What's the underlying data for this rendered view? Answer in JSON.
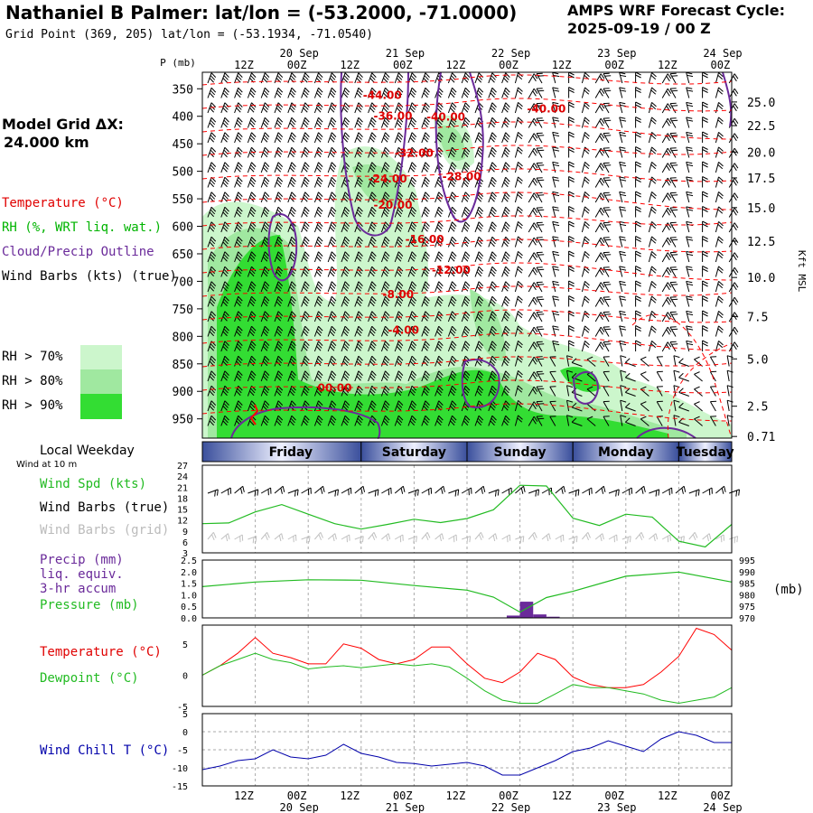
{
  "header": {
    "title": "Nathaniel B Palmer:  lat/lon = (-53.2000, -71.0000)",
    "subtitle": "Grid Point (369, 205) lat/lon = (-53.1934, -71.0540)",
    "cycle_line1": "AMPS WRF Forecast Cycle:",
    "cycle_line2": "2025-09-19 / 00  Z",
    "grid_dx_label": "Model Grid ΔX:",
    "grid_dx_value": " 24.000 km"
  },
  "legend": {
    "temperature": "Temperature (°C)",
    "rh": "RH (%, WRT liq. wat.)",
    "cloud": "Cloud/Precip Outline",
    "wind_barbs": "Wind Barbs (kts) (true)",
    "rh70": "RH > 70%",
    "rh80": "RH > 80%",
    "rh90": "RH > 90%"
  },
  "colors": {
    "temperature": "#ff0000",
    "rh": "#00b400",
    "cloud": "#6a2a9a",
    "rh70": "#ccf6cc",
    "rh80": "#a0e8a0",
    "rh90": "#33dd33",
    "pressure": "#22bb22",
    "precip": "#6a2a9a",
    "windchill": "#0000aa",
    "grid": "#999999"
  },
  "time_axis": {
    "p_label": "P (mb)",
    "top_ticks": [
      "12Z",
      "00Z",
      "12Z",
      "00Z",
      "12Z",
      "00Z",
      "12Z",
      "00Z",
      "12Z",
      "00Z"
    ],
    "dates": [
      "20 Sep",
      "21 Sep",
      "22 Sep",
      "23 Sep",
      "24 Sep"
    ],
    "weekday_label": "Local Weekday",
    "weekdays": [
      "Friday",
      "Saturday",
      "Sunday",
      "Monday",
      "Tuesday"
    ]
  },
  "chart_data": [
    {
      "type": "heatmap",
      "name": "cross-section",
      "pressure_ticks": [
        350,
        400,
        450,
        500,
        550,
        600,
        650,
        700,
        750,
        800,
        850,
        900,
        950
      ],
      "ylim_mb": [
        320,
        985
      ],
      "kft_ticks": [
        "25.0",
        "22.5",
        "20.0",
        "17.5",
        "15.0",
        "12.5",
        "10.0",
        "7.5",
        "5.0",
        "2.5",
        "0.71"
      ],
      "kft_mb": [
        374,
        417,
        465,
        512,
        566,
        627,
        693,
        764,
        841,
        927,
        982
      ],
      "kft_label": "Kft MSL",
      "temperature_labels": [
        {
          "text": "-44.00",
          "t": 0.34,
          "p": 360
        },
        {
          "text": "-36.00",
          "t": 0.36,
          "p": 398
        },
        {
          "text": "-40.00",
          "t": 0.46,
          "p": 400
        },
        {
          "text": "-40.00",
          "t": 0.65,
          "p": 385
        },
        {
          "text": "-32.00",
          "t": 0.4,
          "p": 465
        },
        {
          "text": "-28.00",
          "t": 0.49,
          "p": 508
        },
        {
          "text": "-24.00",
          "t": 0.35,
          "p": 512
        },
        {
          "text": "-20.00",
          "t": 0.36,
          "p": 560
        },
        {
          "text": "-16.00",
          "t": 0.42,
          "p": 622
        },
        {
          "text": "-12.00",
          "t": 0.47,
          "p": 678
        },
        {
          "text": "-8.00",
          "t": 0.37,
          "p": 722
        },
        {
          "text": "-4.00",
          "t": 0.38,
          "p": 787
        },
        {
          "text": "00.00",
          "t": 0.25,
          "p": 892
        }
      ]
    },
    {
      "type": "line",
      "name": "wind-speed",
      "ylabel": "Wind Spd (kts)",
      "ylabel2": "Wind Barbs (true)",
      "ylabel3": "Wind Barbs (grid)",
      "note": "Wind at 10 m",
      "yticks": [
        3,
        6,
        9,
        12,
        15,
        18,
        21,
        24,
        27
      ],
      "ylim": [
        3,
        27
      ],
      "x_hours": [
        0,
        6,
        12,
        18,
        24,
        30,
        36,
        42,
        48,
        54,
        60,
        66,
        72,
        78,
        84,
        90,
        96,
        102,
        108,
        114,
        120
      ],
      "values": [
        11,
        11.2,
        14.2,
        16.2,
        13.6,
        11,
        9.5,
        10.8,
        12.2,
        11.3,
        12.4,
        14.8,
        21.5,
        21.3,
        12.5,
        10.5,
        13.6,
        12.8,
        6.2,
        4.6,
        10.8
      ]
    },
    {
      "type": "bar",
      "name": "precip-pressure",
      "ylabel": "Precip (mm)",
      "ylabel2": "liq. equiv.",
      "ylabel3": "3-hr accum",
      "ylabel_pressure": "Pressure (mb)",
      "precip_ticks": [
        "0.0",
        "0.5",
        "1.0",
        "1.5",
        "2.0",
        "2.5"
      ],
      "precip_ylim": [
        0,
        2.5
      ],
      "pressure_ticks": [
        970,
        975,
        980,
        985,
        990,
        995
      ],
      "pressure_ylim": [
        970,
        995
      ],
      "pressure_unit": "(mb)",
      "precip_x_hours": [
        66,
        69,
        72,
        75,
        78
      ],
      "precip_values": [
        0.02,
        0.1,
        0.7,
        0.15,
        0.05
      ],
      "pressure_x_hours": [
        0,
        12,
        24,
        36,
        48,
        60,
        66,
        72,
        78,
        84,
        96,
        108,
        120
      ],
      "pressure_values": [
        983.5,
        985.5,
        986.5,
        986.3,
        984,
        982,
        979,
        972.5,
        978.8,
        981.5,
        988,
        989.8,
        985.5
      ]
    },
    {
      "type": "line",
      "name": "temperature-dewpoint",
      "ylabel": "Temperature (°C)",
      "ylabel2": "Dewpoint (°C)",
      "yticks": [
        "-5",
        "0",
        "5"
      ],
      "ylim": [
        -5,
        8
      ],
      "x_hours": [
        0,
        4,
        8,
        12,
        16,
        20,
        24,
        28,
        32,
        36,
        40,
        44,
        48,
        52,
        56,
        60,
        64,
        68,
        72,
        76,
        80,
        84,
        88,
        92,
        96,
        100,
        104,
        108,
        112,
        116,
        120
      ],
      "temperature": [
        0,
        1.5,
        3.5,
        6.0,
        3.5,
        2.8,
        1.8,
        1.8,
        5.0,
        4.3,
        2.5,
        1.8,
        2.5,
        4.5,
        4.5,
        1.8,
        -0.5,
        -1.2,
        0.5,
        3.5,
        2.5,
        -0.3,
        -1.5,
        -2.0,
        -2.0,
        -1.5,
        0.5,
        3.0,
        7.5,
        6.5,
        4.0
      ],
      "dewpoint": [
        0,
        1.5,
        2.5,
        3.5,
        2.5,
        2.0,
        1.0,
        1.3,
        1.5,
        1.2,
        1.5,
        1.8,
        1.5,
        1.8,
        1.3,
        -0.5,
        -2.5,
        -4.0,
        -4.5,
        -4.5,
        -3.0,
        -1.5,
        -2.0,
        -2.0,
        -2.5,
        -3.0,
        -4.0,
        -4.5,
        -4.0,
        -3.5,
        -2.0
      ]
    },
    {
      "type": "line",
      "name": "wind-chill",
      "ylabel": "Wind Chill T (°C)",
      "yticks": [
        "5",
        "0",
        "-5",
        "-10",
        "-15"
      ],
      "ylim": [
        -15,
        5
      ],
      "x_hours": [
        0,
        4,
        8,
        12,
        16,
        20,
        24,
        28,
        32,
        36,
        40,
        44,
        48,
        52,
        56,
        60,
        64,
        68,
        72,
        76,
        80,
        84,
        88,
        92,
        96,
        100,
        104,
        108,
        112,
        116,
        120
      ],
      "values": [
        -10.5,
        -9.5,
        -8.0,
        -7.5,
        -5.0,
        -7.0,
        -7.5,
        -6.5,
        -3.5,
        -6.0,
        -7.0,
        -8.5,
        -8.8,
        -9.5,
        -9.0,
        -8.5,
        -9.5,
        -12.0,
        -12.0,
        -10.0,
        -8.0,
        -5.5,
        -4.5,
        -2.5,
        -4.0,
        -5.5,
        -2.0,
        0.0,
        -1.0,
        -3.0,
        -3.0
      ]
    }
  ]
}
